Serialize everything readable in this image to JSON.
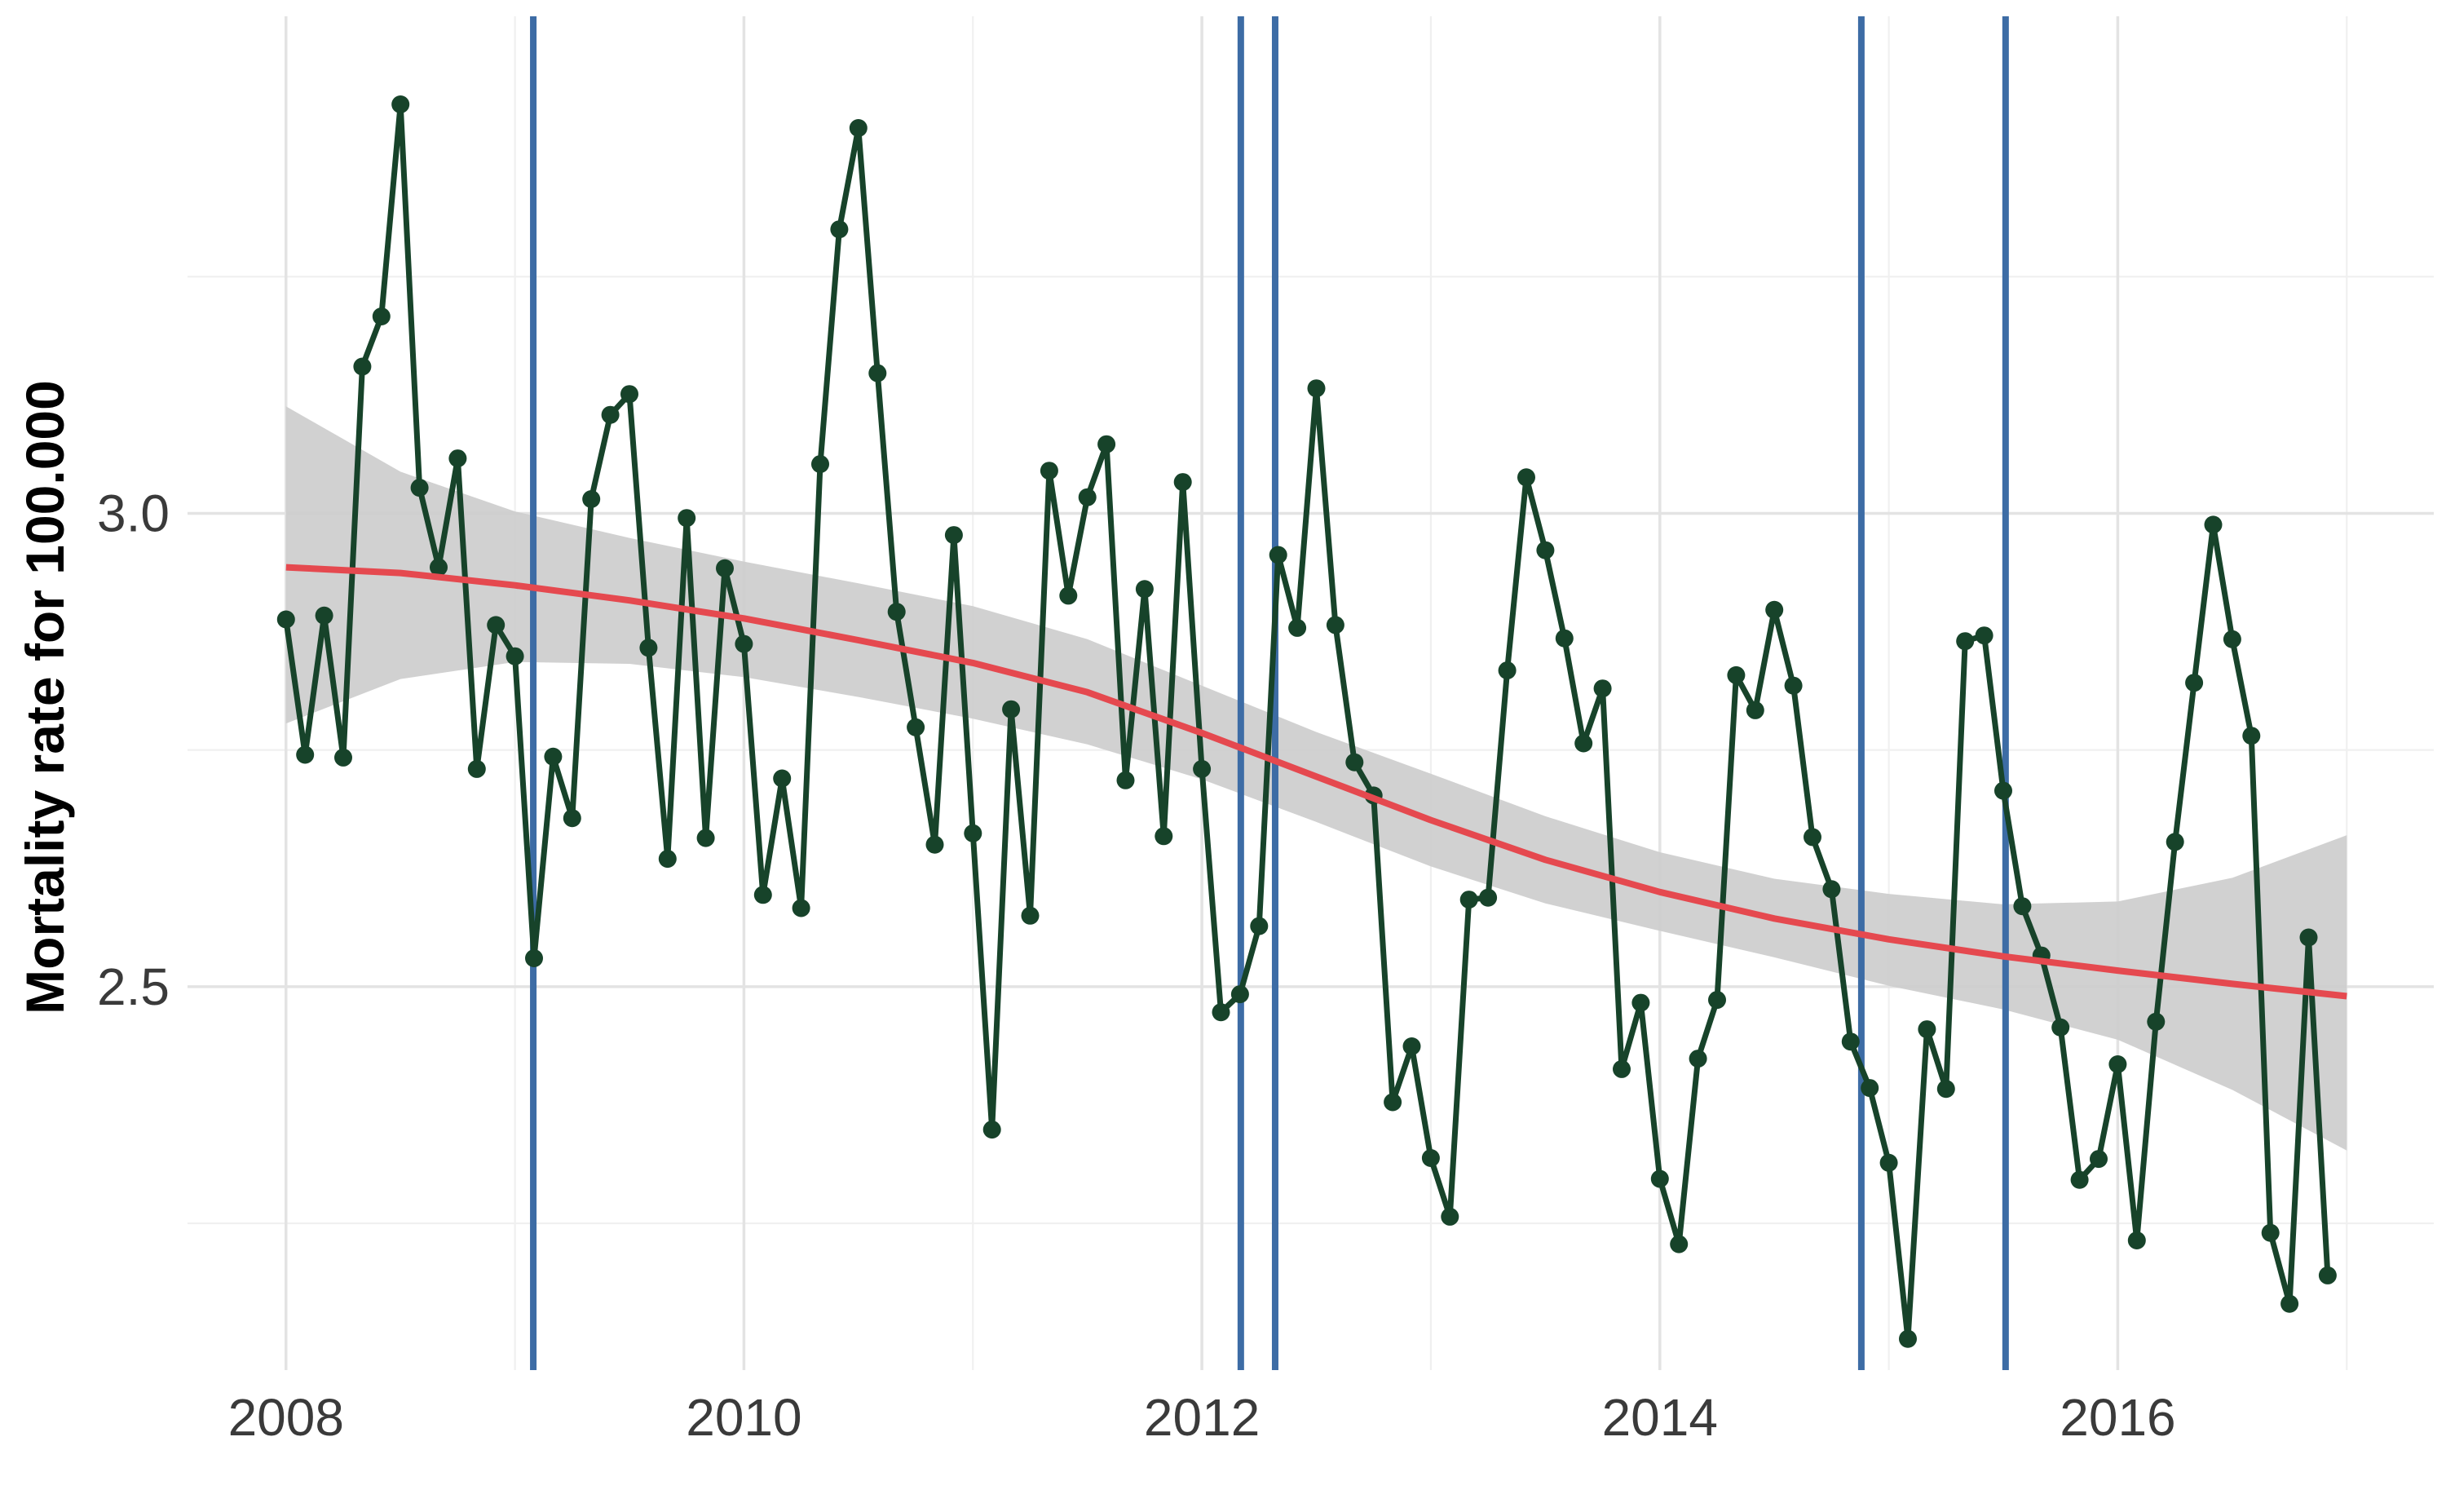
{
  "chart_data": {
    "type": "line",
    "title": "",
    "xlabel": "",
    "ylabel": "Mortality rate for 100.000",
    "x_ticks": [
      2008,
      2010,
      2012,
      2014,
      2016
    ],
    "y_ticks": [
      2.5,
      3.0
    ],
    "y_tick_labels": [
      "2.5",
      "3.0"
    ],
    "xlim": [
      2007.57,
      2017.38
    ],
    "ylim": [
      2.095,
      3.525
    ],
    "grid": true,
    "legend": "none",
    "colors": {
      "series": "#17432a",
      "smooth": "#e5494f",
      "band": "#cccccc",
      "vlines": "#3d6ca5"
    },
    "series": [
      {
        "x_start": 2008.0,
        "x_step_months": 1,
        "values": [
          2.888,
          2.745,
          2.892,
          2.742,
          3.155,
          3.208,
          3.432,
          3.027,
          2.943,
          3.058,
          2.73,
          2.882,
          2.849,
          2.53,
          2.743,
          2.678,
          3.015,
          3.104,
          3.126,
          2.858,
          2.635,
          2.995,
          2.657,
          2.942,
          2.862,
          2.597,
          2.72,
          2.583,
          3.052,
          3.3,
          3.407,
          3.148,
          2.896,
          2.774,
          2.65,
          2.977,
          2.662,
          2.349,
          2.793,
          2.575,
          3.045,
          2.913,
          3.017,
          3.073,
          2.718,
          2.92,
          2.659,
          3.033,
          2.73,
          2.473,
          2.492,
          2.564,
          2.956,
          2.879,
          3.132,
          2.882,
          2.737,
          2.702,
          2.378,
          2.437,
          2.319,
          2.257,
          2.592,
          2.594,
          2.834,
          3.038,
          2.961,
          2.868,
          2.757,
          2.815,
          2.413,
          2.483,
          2.297,
          2.228,
          2.424,
          2.486,
          2.829,
          2.792,
          2.898,
          2.818,
          2.658,
          2.603,
          2.442,
          2.393,
          2.314,
          2.128,
          2.455,
          2.392,
          2.865,
          2.871,
          2.707,
          2.585,
          2.533,
          2.457,
          2.296,
          2.318,
          2.418,
          2.232,
          2.463,
          2.653,
          2.821,
          2.988,
          2.867,
          2.765,
          2.24,
          2.165,
          2.552,
          2.195
        ]
      }
    ],
    "smooth": {
      "x": [
        2008,
        2008.5,
        2009,
        2009.5,
        2010,
        2010.5,
        2011,
        2011.5,
        2012,
        2012.5,
        2013,
        2013.5,
        2014,
        2014.5,
        2015,
        2015.5,
        2016,
        2016.5,
        2017
      ],
      "fit": [
        2.943,
        2.937,
        2.924,
        2.908,
        2.889,
        2.866,
        2.842,
        2.811,
        2.768,
        2.722,
        2.676,
        2.634,
        2.6,
        2.572,
        2.55,
        2.532,
        2.517,
        2.503,
        2.49
      ],
      "lower": [
        2.778,
        2.825,
        2.843,
        2.841,
        2.827,
        2.806,
        2.783,
        2.756,
        2.719,
        2.674,
        2.627,
        2.588,
        2.559,
        2.531,
        2.501,
        2.476,
        2.444,
        2.391,
        2.327
      ],
      "upper": [
        3.113,
        3.044,
        3.002,
        2.974,
        2.949,
        2.926,
        2.902,
        2.867,
        2.818,
        2.769,
        2.725,
        2.68,
        2.642,
        2.614,
        2.598,
        2.587,
        2.59,
        2.615,
        2.66
      ]
    },
    "vertical_lines": [
      2009.08,
      2012.17,
      2012.32,
      2014.88,
      2015.51
    ]
  }
}
